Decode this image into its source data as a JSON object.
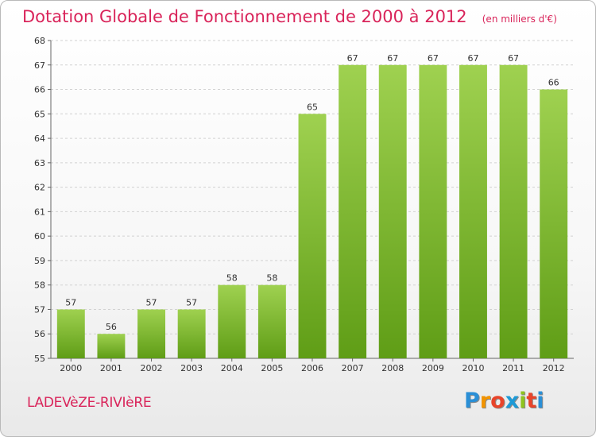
{
  "header": {
    "title": "Dotation Globale de Fonctionnement de 2000 à 2012",
    "subtitle": "(en milliers d'€)"
  },
  "footer": {
    "commune": "LADEVèZE-RIVIèRE",
    "logo_letters": [
      "P",
      "r",
      "o",
      "x",
      "i",
      "t",
      "i"
    ],
    "logo_colors": [
      "#2a8fd6",
      "#f29400",
      "#e8442a",
      "#1e9ad6",
      "#8fc31f",
      "#e8442a",
      "#2a8fd6"
    ]
  },
  "colors": {
    "bar_top": "#9fd150",
    "bar_bottom": "#5f9d16",
    "grid": "#d2d2d2",
    "accent": "#d9245a"
  },
  "chart_data": {
    "type": "bar",
    "categories": [
      "2000",
      "2001",
      "2002",
      "2003",
      "2004",
      "2005",
      "2006",
      "2007",
      "2008",
      "2009",
      "2010",
      "2011",
      "2012"
    ],
    "values": [
      57,
      56,
      57,
      57,
      58,
      58,
      65,
      67,
      67,
      67,
      67,
      67,
      66
    ],
    "ylim": [
      55,
      68
    ],
    "yticks": [
      55,
      56,
      57,
      58,
      59,
      60,
      61,
      62,
      63,
      64,
      65,
      66,
      67,
      68
    ],
    "grid": true,
    "data_labels": true
  }
}
